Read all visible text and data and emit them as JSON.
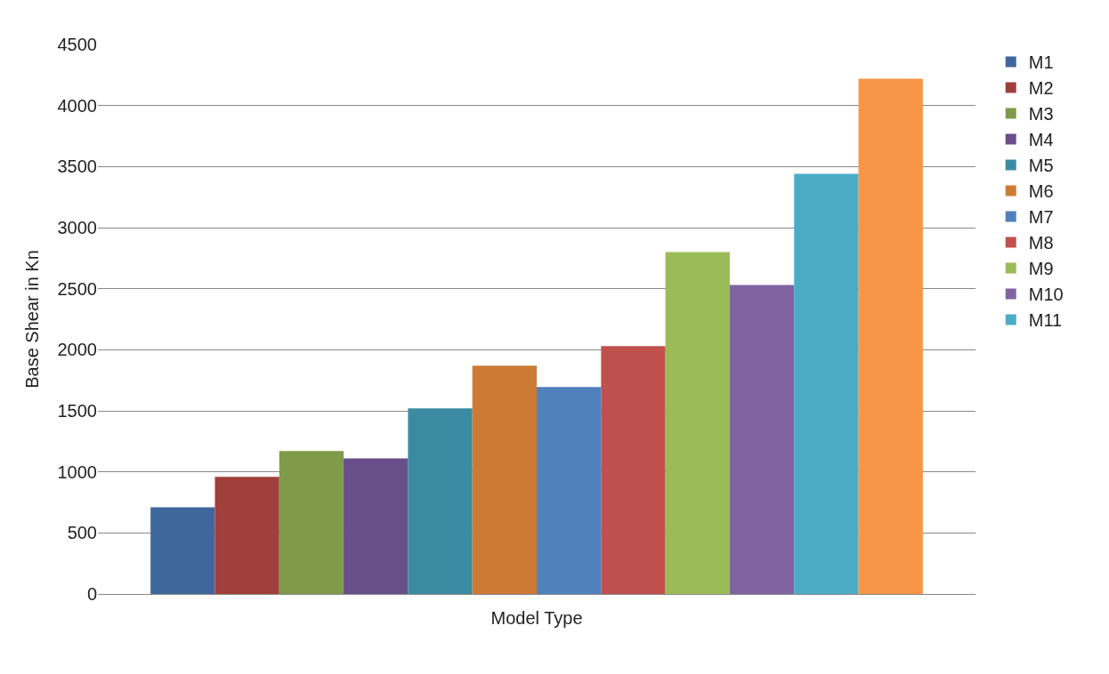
{
  "chart_data": {
    "type": "bar",
    "xlabel": "Model Type",
    "ylabel": "Base Shear in Kn",
    "categories": [
      null
    ],
    "series": [
      {
        "name": "M1",
        "color": "#3f679c",
        "values": [
          710
        ]
      },
      {
        "name": "M2",
        "color": "#a03f3c",
        "values": [
          960
        ]
      },
      {
        "name": "M3",
        "color": "#7f9a48",
        "values": [
          1170
        ]
      },
      {
        "name": "M4",
        "color": "#694f8a",
        "values": [
          1110
        ]
      },
      {
        "name": "M5",
        "color": "#3b8ca3",
        "values": [
          1520
        ]
      },
      {
        "name": "M6",
        "color": "#cd7a35",
        "values": [
          1870
        ]
      },
      {
        "name": "M7",
        "color": "#4f81bd",
        "values": [
          1695
        ]
      },
      {
        "name": "M8",
        "color": "#c0504d",
        "values": [
          2030
        ]
      },
      {
        "name": "M9",
        "color": "#9bbb59",
        "values": [
          2800
        ]
      },
      {
        "name": "M10",
        "color": "#8064a2",
        "values": [
          2530
        ]
      },
      {
        "name": "M11",
        "color": "#4bacc6",
        "values": [
          3440
        ]
      },
      {
        "color": "#f79646",
        "values": [
          4220
        ]
      }
    ],
    "ylim": [
      0,
      4500
    ],
    "yticks": [
      0,
      500,
      1000,
      1500,
      2000,
      2500,
      3000,
      3500,
      4000,
      4500
    ],
    "grid": "y",
    "legend": "right"
  }
}
